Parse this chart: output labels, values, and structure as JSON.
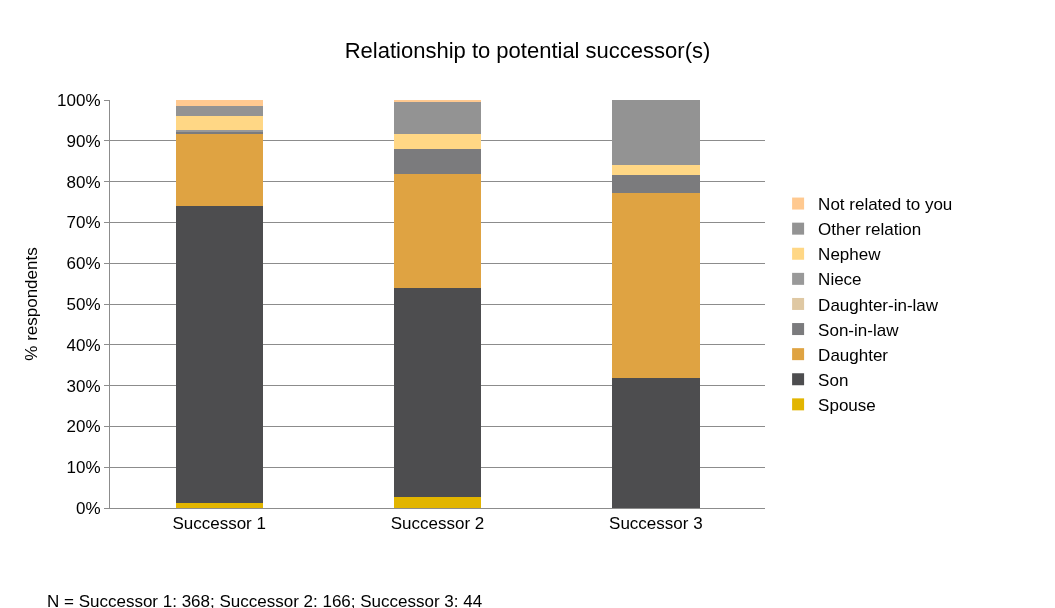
{
  "chart_data": {
    "type": "bar",
    "title": "Relationship to potential successor(s)",
    "ylabel": "% respondents",
    "stacked": true,
    "grid": "y",
    "legend": "right",
    "categories": [
      "Successor 1",
      "Successor 2",
      "Successor 3"
    ],
    "series": [
      {
        "name": "Spouse",
        "color": "#e2b500",
        "values": [
          1.3,
          2.7,
          0
        ]
      },
      {
        "name": "Son",
        "color": "#4d4d4f",
        "values": [
          72.7,
          51.3,
          31.8
        ]
      },
      {
        "name": "Daughter",
        "color": "#dfa342",
        "values": [
          17.7,
          27.9,
          45.4
        ]
      },
      {
        "name": "Son-in-law",
        "color": "#7b7b7d",
        "values": [
          0.5,
          6.1,
          4.5
        ]
      },
      {
        "name": "Daughter-in-law",
        "color": "#dfc8a3",
        "values": [
          0,
          0,
          0
        ]
      },
      {
        "name": "Niece",
        "color": "#999999",
        "values": [
          0.4,
          0,
          0
        ]
      },
      {
        "name": "Nephew",
        "color": "#ffd785",
        "values": [
          3.6,
          3.6,
          2.4
        ]
      },
      {
        "name": "Other relation",
        "color": "#939393",
        "values": [
          2.4,
          7.8,
          15.9
        ]
      },
      {
        "name": "Not related to you",
        "color": "#ffc990",
        "values": [
          1.4,
          0.6,
          0
        ]
      }
    ],
    "ylim": [
      0,
      100
    ],
    "yticks": [
      {
        "value": 0,
        "label": "0%"
      },
      {
        "value": 10,
        "label": "10%"
      },
      {
        "value": 20,
        "label": "20%"
      },
      {
        "value": 30,
        "label": "30%"
      },
      {
        "value": 40,
        "label": "40%"
      },
      {
        "value": 50,
        "label": "50%"
      },
      {
        "value": 60,
        "label": "60%"
      },
      {
        "value": 70,
        "label": "70%"
      },
      {
        "value": 80,
        "label": "80%"
      },
      {
        "value": 90,
        "label": "90%"
      },
      {
        "value": 100,
        "label": "100%"
      }
    ],
    "annotations": [
      "N = Successor 1: 368; Successor 2: 166; Successor 3: 44"
    ]
  }
}
